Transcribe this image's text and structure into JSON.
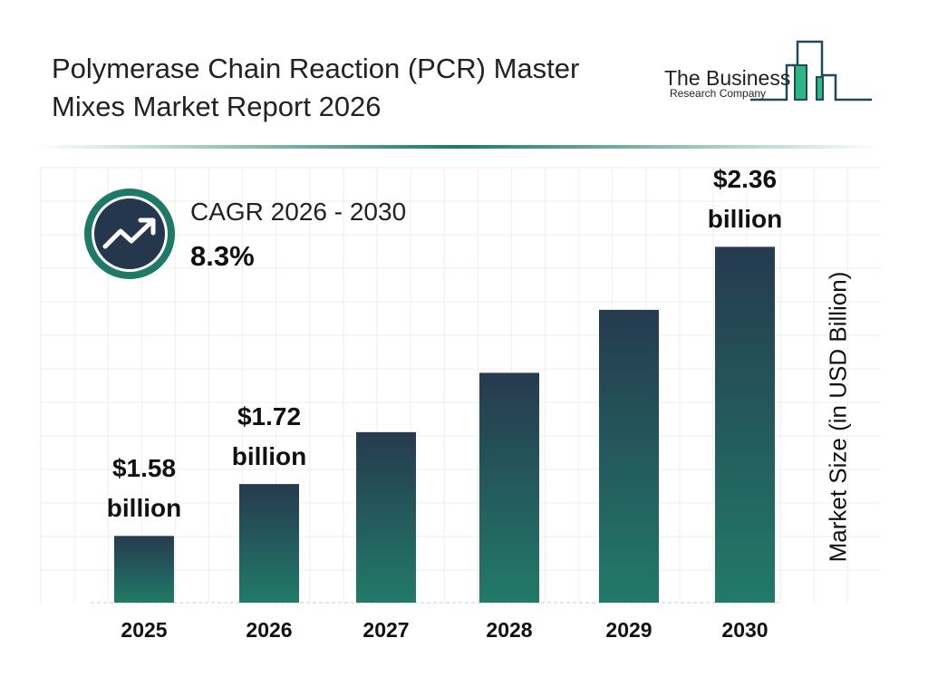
{
  "header": {
    "title_line1": "Polymerase Chain Reaction (PCR) Master",
    "title_line2": "Mixes Market Report 2026"
  },
  "logo": {
    "line1": "The Business",
    "line2": "Research Company"
  },
  "cagr": {
    "label": "CAGR 2026 - 2030",
    "value": "8.3%",
    "icon": "trending-up-icon"
  },
  "colors": {
    "bar_top": "#263a50",
    "bar_bottom": "#217a68",
    "accent": "#1e7a66",
    "icon_bg": "#25374d"
  },
  "chart_data": {
    "type": "bar",
    "categories": [
      "2025",
      "2026",
      "2027",
      "2028",
      "2029",
      "2030"
    ],
    "values": [
      1.58,
      1.72,
      1.86,
      2.02,
      2.19,
      2.36
    ],
    "unit": "billion",
    "value_labels": [
      {
        "amount": "$1.58",
        "unit": "billion"
      },
      {
        "amount": "$1.72",
        "unit": "billion"
      },
      null,
      null,
      null,
      {
        "amount": "$2.36",
        "unit": "billion"
      }
    ],
    "ylabel": "Market Size (in USD Billion)",
    "grid": true,
    "legend": "none"
  }
}
